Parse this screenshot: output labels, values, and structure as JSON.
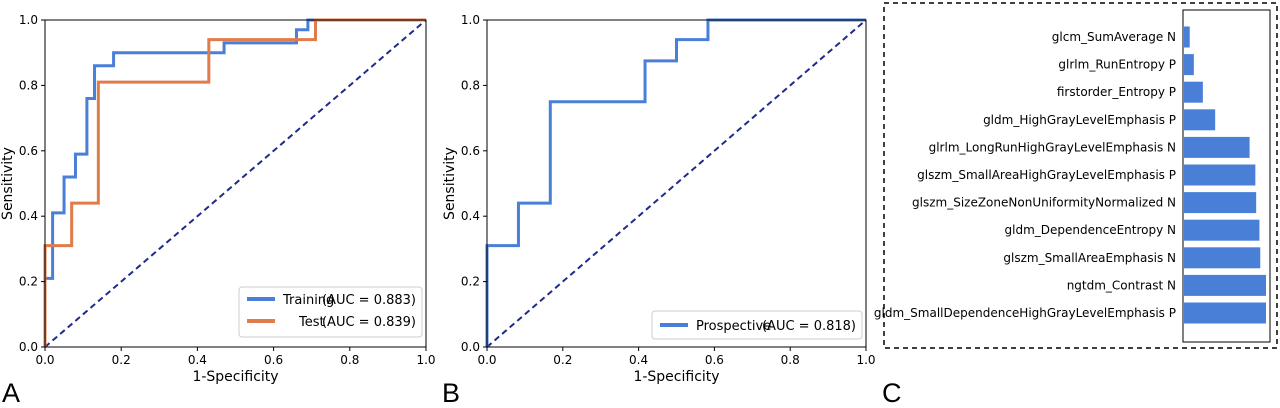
{
  "chart_data": [
    {
      "type": "line",
      "panel_label": "A",
      "xlabel": "1-Specificity",
      "ylabel": "Sensitivity",
      "xlim": [
        0,
        1
      ],
      "ylim": [
        0,
        1
      ],
      "xticks": [
        "0.0",
        "0.2",
        "0.4",
        "0.6",
        "0.8",
        "1.0"
      ],
      "yticks": [
        "0.0",
        "0.2",
        "0.4",
        "0.6",
        "0.8",
        "1.0"
      ],
      "legend_position": "lower-right",
      "series": [
        {
          "name": "Training",
          "legend_suffix": "(AUC = 0.883)",
          "color": "#4a7fd8",
          "x": [
            0,
            0,
            0.02,
            0.02,
            0.05,
            0.05,
            0.08,
            0.08,
            0.11,
            0.11,
            0.13,
            0.13,
            0.18,
            0.18,
            0.47,
            0.47,
            0.66,
            0.66,
            0.69,
            0.69,
            1.0
          ],
          "y": [
            0,
            0.21,
            0.21,
            0.41,
            0.41,
            0.52,
            0.52,
            0.59,
            0.59,
            0.76,
            0.76,
            0.86,
            0.86,
            0.9,
            0.9,
            0.93,
            0.93,
            0.97,
            0.97,
            1.0,
            1.0
          ]
        },
        {
          "name": "Test",
          "legend_suffix": "(AUC = 0.839)",
          "color": "#e07b4a",
          "x": [
            0,
            0,
            0.07,
            0.07,
            0.14,
            0.14,
            0.43,
            0.43,
            0.71,
            0.71,
            1.0
          ],
          "y": [
            0,
            0.31,
            0.31,
            0.44,
            0.44,
            0.81,
            0.81,
            0.94,
            0.94,
            1.0,
            1.0
          ]
        }
      ],
      "diagonal_color": "#1e2a8c"
    },
    {
      "type": "line",
      "panel_label": "B",
      "xlabel": "1-Specificity",
      "ylabel": "Sensitivity",
      "xlim": [
        0,
        1
      ],
      "ylim": [
        0,
        1
      ],
      "xticks": [
        "0.0",
        "0.2",
        "0.4",
        "0.6",
        "0.8",
        "1.0"
      ],
      "yticks": [
        "0.0",
        "0.2",
        "0.4",
        "0.6",
        "0.8",
        "1.0"
      ],
      "legend_position": "lower-right",
      "series": [
        {
          "name": "Prospective",
          "legend_suffix": "(AUC = 0.818)",
          "color": "#4a7fd8",
          "x": [
            0,
            0,
            0.083,
            0.083,
            0.167,
            0.167,
            0.417,
            0.417,
            0.5,
            0.5,
            0.583,
            0.583,
            1.0
          ],
          "y": [
            0,
            0.31,
            0.31,
            0.44,
            0.44,
            0.75,
            0.75,
            0.875,
            0.875,
            0.94,
            0.94,
            1.0,
            1.0
          ]
        }
      ],
      "diagonal_color": "#1e2a8c"
    },
    {
      "type": "bar",
      "orientation": "horizontal",
      "panel_label": "C",
      "color": "#4a7fd8",
      "categories": [
        "glcm_SumAverage N",
        "glrlm_RunEntropy P",
        "firstorder_Entropy P",
        "gldm_HighGrayLevelEmphasis P",
        "glrlm_LongRunHighGrayLevelEmphasis N",
        "glszm_SmallAreaHighGrayLevelEmphasis P",
        "glszm_SizeZoneNonUniformityNormalized N",
        "gldm_DependenceEntropy N",
        "glszm_SmallAreaEmphasis N",
        "ngtdm_Contrast N",
        "gldm_SmallDependenceHighGrayLevelEmphasis P"
      ],
      "values": [
        0.07,
        0.12,
        0.23,
        0.38,
        0.8,
        0.87,
        0.88,
        0.92,
        0.93,
        1.0,
        1.0
      ]
    }
  ]
}
